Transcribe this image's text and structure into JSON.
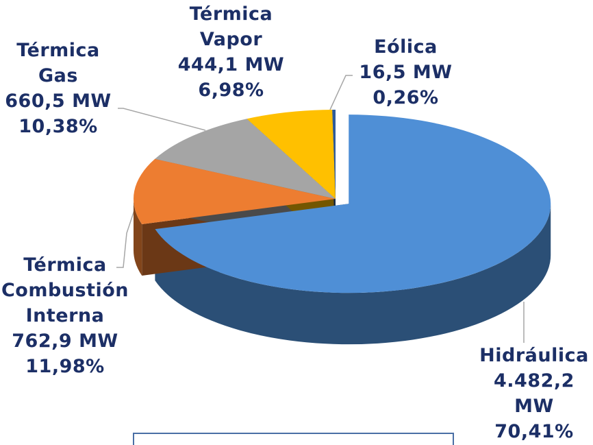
{
  "chart_data": {
    "type": "pie3d",
    "categories": [
      "Hidráulica",
      "Térmica Combustión Interna",
      "Térmica Gas",
      "Térmica Vapor",
      "Eólica"
    ],
    "values": [
      4482.2,
      762.9,
      660.5,
      444.1,
      16.5
    ],
    "value_labels": [
      "4.482,2 MW",
      "762,9 MW",
      "660,5 MW",
      "444,1 MW",
      "16,5 MW"
    ],
    "percents": [
      70.41,
      11.98,
      10.38,
      6.98,
      0.26
    ],
    "percent_labels": [
      "70,41%",
      "11,98%",
      "10,38%",
      "6,98%",
      "0,26%"
    ],
    "colors": [
      "#4f8fd6",
      "#ed7d31",
      "#a5a5a5",
      "#ffc000",
      "#2e5b9a"
    ]
  }
}
